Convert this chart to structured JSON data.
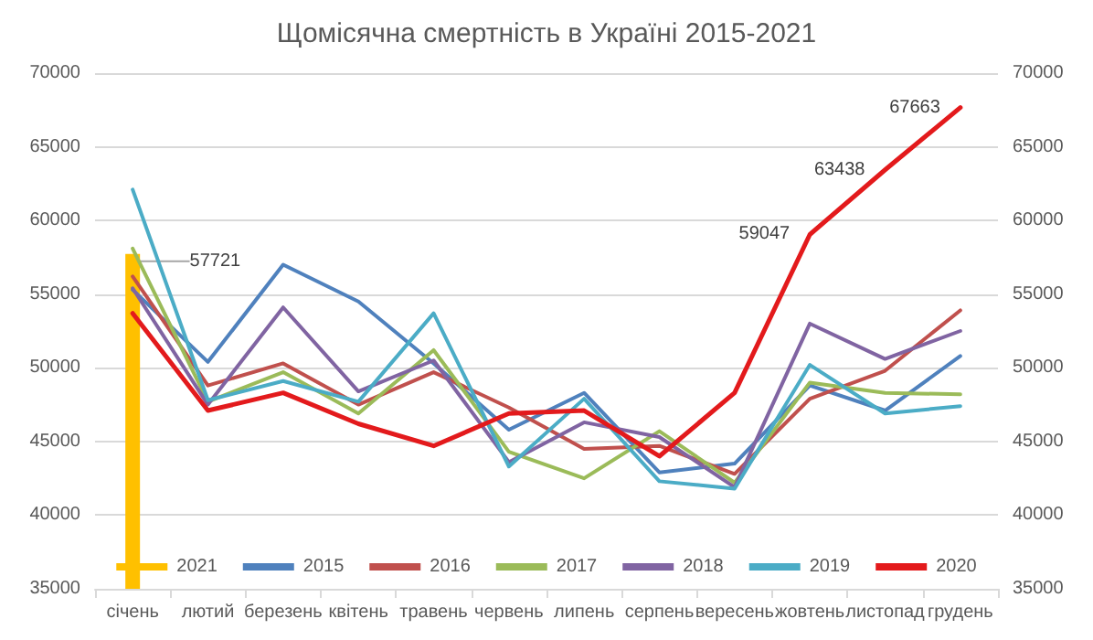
{
  "chart_data": {
    "type": "line",
    "title": "Щомісячна смертність в Україні 2015-2021",
    "categories": [
      "січень",
      "лютий",
      "березень",
      "квітень",
      "травень",
      "червень",
      "липень",
      "серпень",
      "вересень",
      "жовтень",
      "листопад",
      "грудень"
    ],
    "series": [
      {
        "name": "2021",
        "type": "bar",
        "color": "#ffc000",
        "values": [
          57721,
          null,
          null,
          null,
          null,
          null,
          null,
          null,
          null,
          null,
          null,
          null
        ],
        "value_labels": [
          "57721",
          null,
          null,
          null,
          null,
          null,
          null,
          null,
          null,
          null,
          null,
          null
        ]
      },
      {
        "name": "2015",
        "color": "#4f81bd",
        "values": [
          55300,
          50400,
          57000,
          54500,
          50300,
          45800,
          48300,
          42900,
          43500,
          48800,
          47100,
          50800
        ]
      },
      {
        "name": "2016",
        "color": "#c0504d",
        "values": [
          56200,
          48800,
          50300,
          47500,
          49700,
          47300,
          44500,
          44700,
          42800,
          47900,
          49800,
          53900
        ]
      },
      {
        "name": "2017",
        "color": "#9bbb59",
        "values": [
          58100,
          47700,
          49700,
          46900,
          51200,
          44300,
          42500,
          45700,
          42200,
          49000,
          48300,
          48200
        ]
      },
      {
        "name": "2018",
        "color": "#8064a2",
        "values": [
          55400,
          47500,
          54100,
          48400,
          50500,
          43600,
          46300,
          45300,
          41900,
          53000,
          50600,
          52500
        ]
      },
      {
        "name": "2019",
        "color": "#4bacc6",
        "values": [
          62100,
          47800,
          49100,
          47700,
          53700,
          43300,
          47900,
          42300,
          41800,
          50200,
          46900,
          47400
        ]
      },
      {
        "name": "2020",
        "color": "#e31a1c",
        "values": [
          53700,
          47100,
          48300,
          46200,
          44700,
          46900,
          47100,
          44000,
          48300,
          59047,
          63438,
          67663
        ],
        "value_labels": [
          null,
          null,
          null,
          null,
          null,
          null,
          null,
          null,
          null,
          "59047",
          "63438",
          "67663"
        ]
      }
    ],
    "ylim": [
      35000,
      70000
    ],
    "yticks": [
      35000,
      40000,
      45000,
      50000,
      55000,
      60000,
      65000,
      70000
    ],
    "y2lim": [
      35000,
      70000
    ],
    "y2ticks": [
      35000,
      40000,
      45000,
      50000,
      55000,
      60000,
      65000,
      70000
    ],
    "grid": "y",
    "legend": "bottom",
    "marker": "none",
    "line_style": "solid"
  }
}
